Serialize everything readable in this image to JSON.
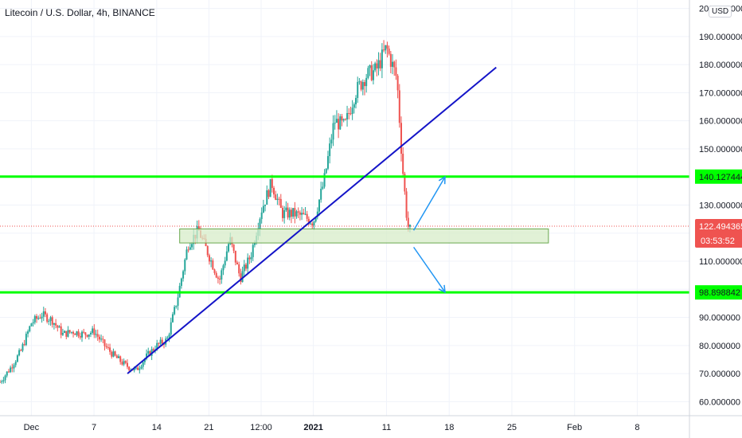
{
  "header": {
    "title": "Litecoin / U.S. Dollar, 4h, BINANCE",
    "currency": "USD"
  },
  "colors": {
    "up": "#26a69a",
    "down": "#ef5350",
    "trendline": "#1414c8",
    "level": "#00ff00",
    "zone_fill": "#d7ecc8",
    "zone_stroke": "#6aa84f",
    "arrow": "#2196f3",
    "grid": "#f0f3fa",
    "price_line": "#ef5350"
  },
  "chart_data": {
    "type": "candlestick",
    "y_axis": {
      "min": 55,
      "max": 203,
      "ticks": [
        60,
        70,
        80,
        90,
        100,
        110,
        120,
        130,
        140,
        150,
        160,
        170,
        180,
        190,
        200
      ],
      "tick_labels": [
        "60.000000",
        "70.000000",
        "80.000000",
        "90.000000",
        "",
        "110.000000",
        "",
        "130.000000",
        "",
        "150.000000",
        "160.000000",
        "170.000000",
        "180.000000",
        "190.000000",
        "200.000000"
      ]
    },
    "x_axis": {
      "min": 0,
      "max": 52,
      "ticks": [
        {
          "t": 3,
          "label": "Dec"
        },
        {
          "t": 9,
          "label": "7"
        },
        {
          "t": 15,
          "label": "14"
        },
        {
          "t": 20,
          "label": "21"
        },
        {
          "t": 25,
          "label": "12:00"
        },
        {
          "t": 30,
          "label": "2021"
        },
        {
          "t": 37,
          "label": "11"
        },
        {
          "t": 43,
          "label": "18"
        },
        {
          "t": 49,
          "label": "25"
        },
        {
          "t": 55,
          "label": "Feb"
        },
        {
          "t": 61,
          "label": "8"
        }
      ],
      "t_domain": [
        0,
        66
      ]
    },
    "price_path": [
      [
        0,
        67
      ],
      [
        1,
        72
      ],
      [
        2,
        78
      ],
      [
        3,
        88
      ],
      [
        4,
        91
      ],
      [
        5,
        89
      ],
      [
        6,
        84
      ],
      [
        7,
        85
      ],
      [
        8,
        84
      ],
      [
        9,
        85
      ],
      [
        10,
        80
      ],
      [
        11,
        76
      ],
      [
        12,
        73
      ],
      [
        13,
        71
      ],
      [
        14,
        76
      ],
      [
        15,
        80
      ],
      [
        16,
        82
      ],
      [
        17,
        97
      ],
      [
        18,
        116
      ],
      [
        19,
        121
      ],
      [
        20,
        112
      ],
      [
        21,
        103
      ],
      [
        22,
        118
      ],
      [
        23,
        104
      ],
      [
        24,
        112
      ],
      [
        25,
        128
      ],
      [
        26,
        138
      ],
      [
        27,
        127
      ],
      [
        28,
        127
      ],
      [
        29,
        126
      ],
      [
        30,
        124
      ],
      [
        31,
        138
      ],
      [
        32,
        160
      ],
      [
        33,
        158
      ],
      [
        34,
        170
      ],
      [
        35,
        176
      ],
      [
        36,
        178
      ],
      [
        37,
        186
      ],
      [
        38,
        175
      ],
      [
        38.5,
        145
      ],
      [
        39,
        123
      ],
      [
        39.4,
        120
      ]
    ],
    "trendline": {
      "start": [
        12.2,
        70
      ],
      "end": [
        47.5,
        179
      ]
    },
    "levels": [
      {
        "value": 140.127444,
        "label": "140.127444"
      },
      {
        "value": 98.898842,
        "label": "98.898842"
      }
    ],
    "zone": {
      "t_start": 17.2,
      "t_end": 52.5,
      "low": 116.5,
      "high": 121.5
    },
    "current_price": {
      "value": 122.494365,
      "label": "122.494365",
      "countdown": "03:53:52"
    },
    "arrows": [
      {
        "from": [
          39.6,
          121
        ],
        "to": [
          42.6,
          140
        ]
      },
      {
        "from": [
          39.6,
          115
        ],
        "to": [
          42.6,
          99
        ]
      }
    ]
  }
}
